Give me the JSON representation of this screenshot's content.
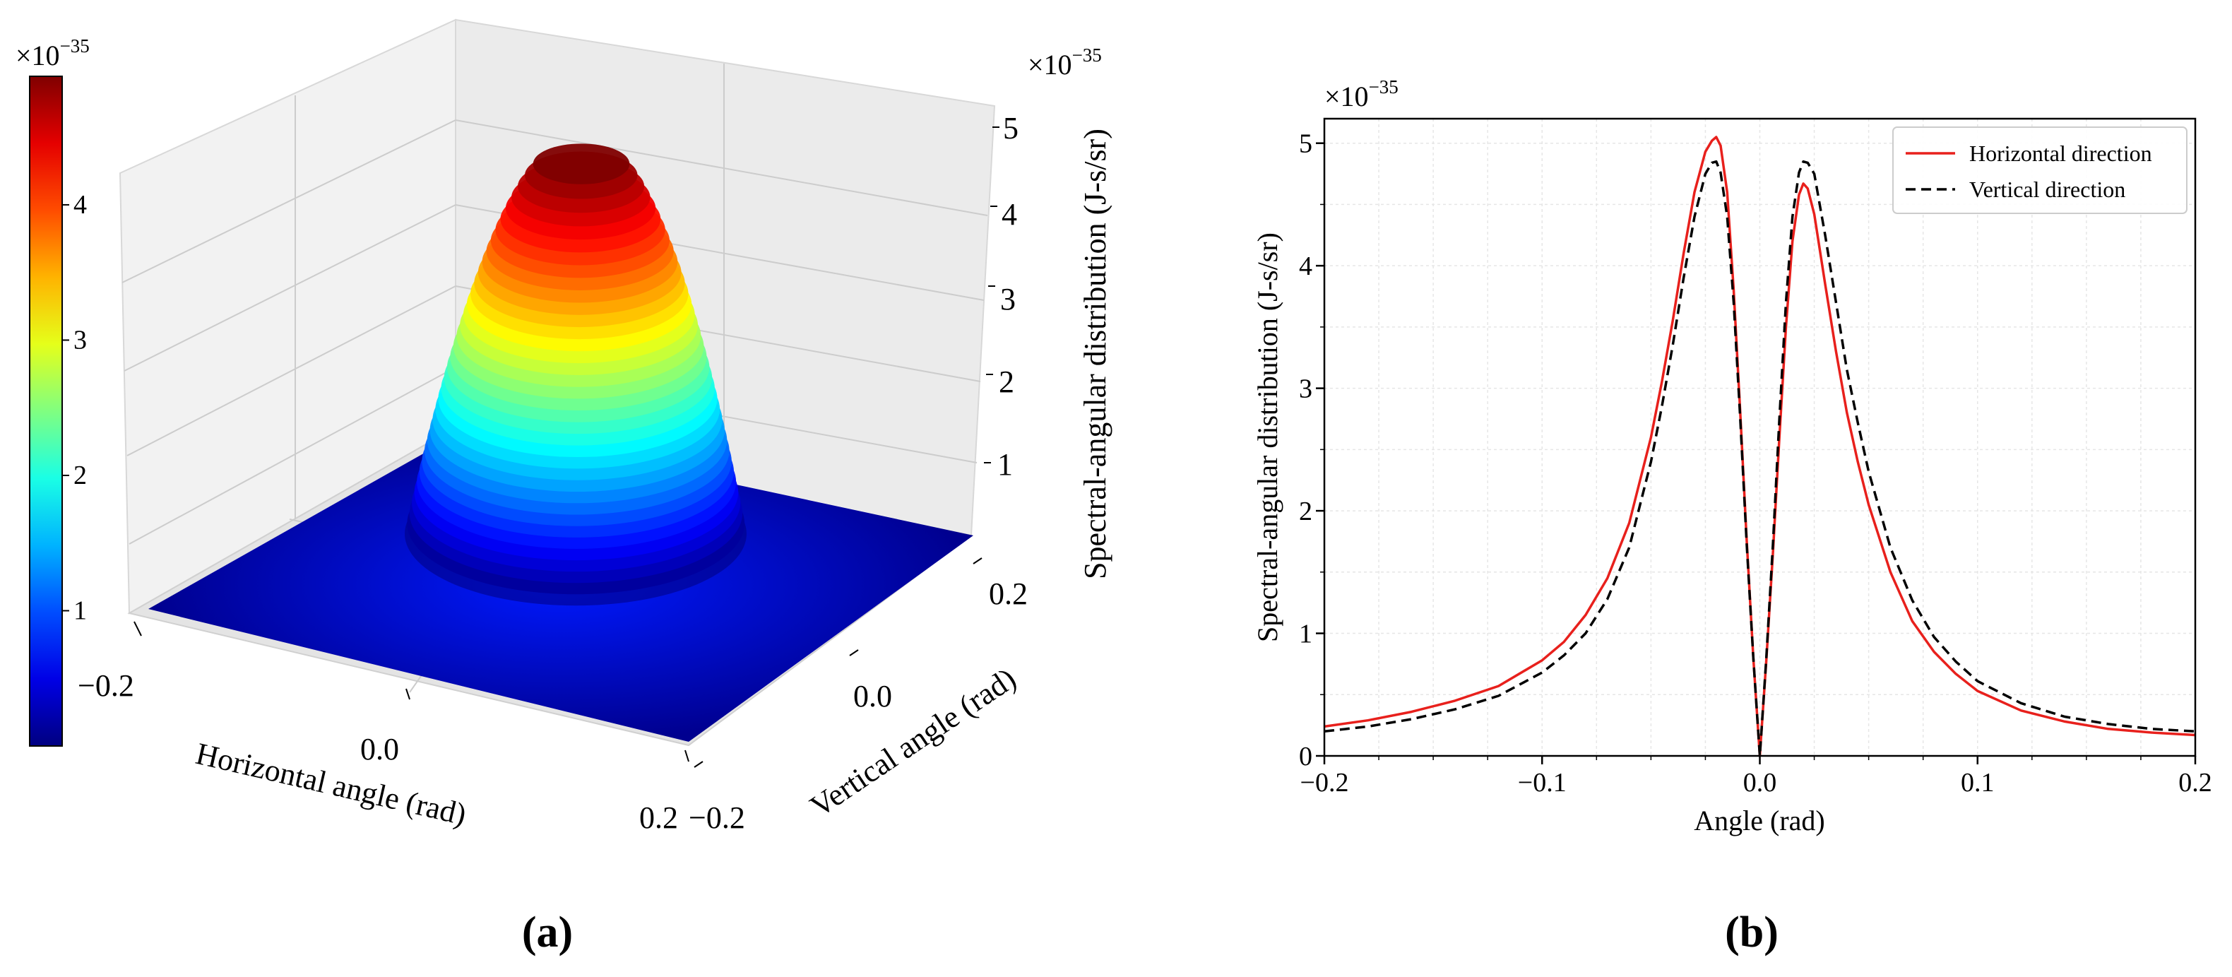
{
  "figure": {
    "panel_a_label": "(a)",
    "panel_b_label": "(b)"
  },
  "chart_data": [
    {
      "type": "surface",
      "panel": "(a)",
      "colormap": "jet",
      "colorbar": {
        "multiplier": "×10",
        "exponent": "−35",
        "ticks": [
          1,
          2,
          3,
          4
        ],
        "range": [
          0.0,
          4.95
        ]
      },
      "xlabel": "Horizontal angle (rad)",
      "ylabel": "Vertical angle (rad)",
      "zlabel": "Spectral-angular distribution (J-s/sr)",
      "z_multiplier": "×10",
      "z_exponent": "−35",
      "xlim": [
        -0.2,
        0.2
      ],
      "ylim": [
        -0.2,
        0.2
      ],
      "zlim": [
        0,
        5
      ],
      "xticks": [
        "−0.2",
        "0.0",
        "0.2"
      ],
      "yticks": [
        "−0.2",
        "0.0",
        "0.2"
      ],
      "zticks": [
        "1",
        "2",
        "3",
        "4",
        "5"
      ],
      "peak_value": 4.95
    },
    {
      "type": "line",
      "panel": "(b)",
      "xlabel": "Angle (rad)",
      "ylabel": "Spectral-angular distribution (J-s/sr)",
      "y_multiplier": "×10",
      "y_exponent": "−35",
      "xlim": [
        -0.2,
        0.2
      ],
      "ylim": [
        0,
        5.2
      ],
      "xticks": [
        "−0.2",
        "−0.1",
        "0.0",
        "0.1",
        "0.2"
      ],
      "yticks": [
        "0",
        "1",
        "2",
        "3",
        "4",
        "5"
      ],
      "grid": true,
      "legend_position": "top-right",
      "series": [
        {
          "name": "Horizontal direction",
          "color": "#e8201c",
          "dash": "solid",
          "x": [
            -0.2,
            -0.18,
            -0.16,
            -0.14,
            -0.12,
            -0.1,
            -0.09,
            -0.08,
            -0.07,
            -0.06,
            -0.05,
            -0.045,
            -0.04,
            -0.035,
            -0.03,
            -0.025,
            -0.022,
            -0.02,
            -0.018,
            -0.015,
            -0.012,
            -0.009,
            -0.006,
            -0.003,
            0.0,
            0.003,
            0.006,
            0.009,
            0.012,
            0.015,
            0.018,
            0.02,
            0.022,
            0.025,
            0.03,
            0.035,
            0.04,
            0.045,
            0.05,
            0.06,
            0.07,
            0.08,
            0.09,
            0.1,
            0.12,
            0.14,
            0.16,
            0.18,
            0.2
          ],
          "y": [
            0.24,
            0.29,
            0.36,
            0.45,
            0.57,
            0.78,
            0.93,
            1.15,
            1.45,
            1.9,
            2.6,
            3.05,
            3.55,
            4.1,
            4.6,
            4.93,
            5.02,
            5.05,
            4.98,
            4.6,
            3.8,
            2.8,
            1.75,
            0.8,
            0.0,
            0.78,
            1.65,
            2.6,
            3.5,
            4.2,
            4.58,
            4.67,
            4.63,
            4.42,
            3.85,
            3.3,
            2.8,
            2.4,
            2.05,
            1.5,
            1.1,
            0.85,
            0.67,
            0.53,
            0.37,
            0.28,
            0.22,
            0.19,
            0.17
          ]
        },
        {
          "name": "Vertical direction",
          "color": "#000000",
          "dash": "dashed",
          "x": [
            -0.2,
            -0.18,
            -0.16,
            -0.14,
            -0.12,
            -0.1,
            -0.09,
            -0.08,
            -0.07,
            -0.06,
            -0.05,
            -0.045,
            -0.04,
            -0.035,
            -0.03,
            -0.025,
            -0.022,
            -0.02,
            -0.018,
            -0.015,
            -0.012,
            -0.009,
            -0.006,
            -0.003,
            0.0,
            0.003,
            0.006,
            0.009,
            0.012,
            0.015,
            0.018,
            0.02,
            0.022,
            0.025,
            0.03,
            0.035,
            0.04,
            0.045,
            0.05,
            0.06,
            0.07,
            0.08,
            0.09,
            0.1,
            0.12,
            0.14,
            0.16,
            0.18,
            0.2
          ],
          "y": [
            0.2,
            0.24,
            0.3,
            0.38,
            0.49,
            0.68,
            0.82,
            1.0,
            1.28,
            1.7,
            2.4,
            2.85,
            3.35,
            3.9,
            4.4,
            4.75,
            4.84,
            4.85,
            4.76,
            4.4,
            3.7,
            2.75,
            1.72,
            0.8,
            0.0,
            0.8,
            1.72,
            2.75,
            3.7,
            4.4,
            4.76,
            4.85,
            4.84,
            4.75,
            4.25,
            3.7,
            3.15,
            2.72,
            2.32,
            1.7,
            1.27,
            0.97,
            0.77,
            0.61,
            0.43,
            0.32,
            0.26,
            0.22,
            0.2
          ]
        }
      ]
    }
  ]
}
